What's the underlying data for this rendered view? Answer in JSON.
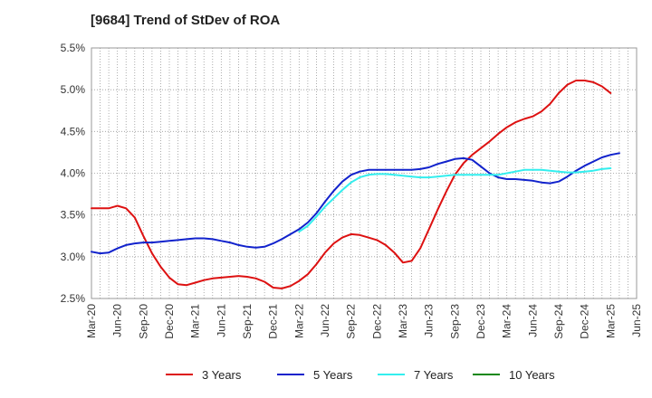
{
  "chart_data": {
    "type": "line",
    "title": "[9684]  Trend of StDev of ROA",
    "xlabel": "",
    "ylabel": "",
    "ylim": [
      2.5,
      5.5
    ],
    "y_ticks": [
      "2.5%",
      "3.0%",
      "3.5%",
      "4.0%",
      "4.5%",
      "5.0%",
      "5.5%"
    ],
    "x_ticks": [
      "Mar-20",
      "Jun-20",
      "Sep-20",
      "Dec-20",
      "Mar-21",
      "Jun-21",
      "Sep-21",
      "Dec-21",
      "Mar-22",
      "Jun-22",
      "Sep-22",
      "Dec-22",
      "Mar-23",
      "Jun-23",
      "Sep-23",
      "Dec-23",
      "Mar-24",
      "Jun-24",
      "Sep-24",
      "Dec-24",
      "Mar-25",
      "Jun-25"
    ],
    "grid": true,
    "legend_position": "bottom",
    "series": [
      {
        "name": "3 Years",
        "color": "#dd1111",
        "start_month": 0,
        "values": [
          3.58,
          3.58,
          3.58,
          3.61,
          3.58,
          3.47,
          3.25,
          3.04,
          2.88,
          2.75,
          2.67,
          2.66,
          2.69,
          2.72,
          2.74,
          2.75,
          2.76,
          2.77,
          2.76,
          2.74,
          2.7,
          2.63,
          2.62,
          2.65,
          2.71,
          2.79,
          2.91,
          3.05,
          3.16,
          3.23,
          3.27,
          3.26,
          3.23,
          3.2,
          3.14,
          3.05,
          2.93,
          2.95,
          3.1,
          3.33,
          3.56,
          3.78,
          3.98,
          4.12,
          4.22,
          4.3,
          4.38,
          4.47,
          4.55,
          4.61,
          4.65,
          4.68,
          4.74,
          4.83,
          4.96,
          5.06,
          5.11,
          5.11,
          5.09,
          5.04,
          4.96
        ]
      },
      {
        "name": "5 Years",
        "color": "#1122cc",
        "start_month": 0,
        "values": [
          3.06,
          3.04,
          3.05,
          3.1,
          3.14,
          3.16,
          3.17,
          3.17,
          3.18,
          3.19,
          3.2,
          3.21,
          3.22,
          3.22,
          3.21,
          3.19,
          3.17,
          3.14,
          3.12,
          3.11,
          3.12,
          3.16,
          3.21,
          3.27,
          3.33,
          3.41,
          3.52,
          3.66,
          3.79,
          3.9,
          3.98,
          4.02,
          4.04,
          4.04,
          4.04,
          4.04,
          4.04,
          4.04,
          4.05,
          4.07,
          4.11,
          4.14,
          4.17,
          4.18,
          4.16,
          4.08,
          4.0,
          3.95,
          3.93,
          3.93,
          3.92,
          3.91,
          3.89,
          3.88,
          3.9,
          3.96,
          4.03,
          4.09,
          4.14,
          4.19,
          4.22,
          4.24
        ]
      },
      {
        "name": "7 Years",
        "color": "#33eeee",
        "start_month": 24,
        "values": [
          3.3,
          3.37,
          3.48,
          3.6,
          3.7,
          3.8,
          3.89,
          3.95,
          3.98,
          3.99,
          3.99,
          3.98,
          3.97,
          3.96,
          3.95,
          3.95,
          3.96,
          3.97,
          3.98,
          3.98,
          3.98,
          3.98,
          3.98,
          3.98,
          4.0,
          4.02,
          4.04,
          4.04,
          4.04,
          4.03,
          4.02,
          4.01,
          4.01,
          4.02,
          4.03,
          4.05,
          4.06
        ]
      },
      {
        "name": "10 Years",
        "color": "#118811",
        "start_month": 0,
        "values": []
      }
    ]
  }
}
